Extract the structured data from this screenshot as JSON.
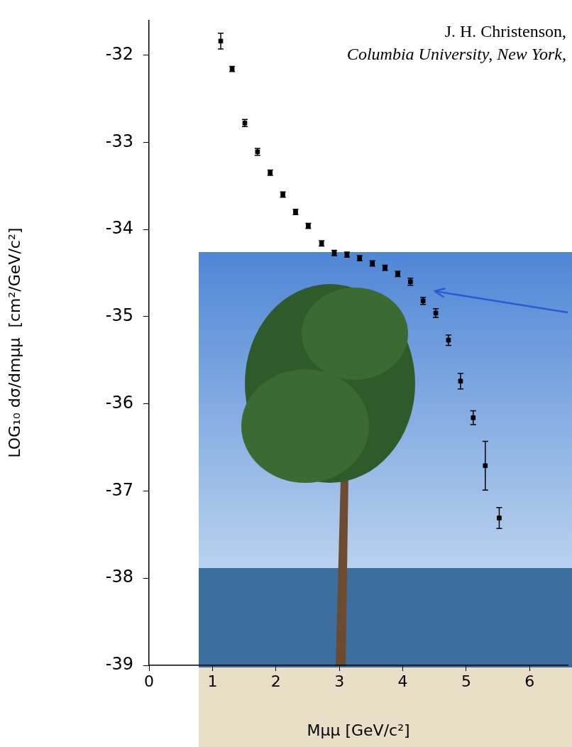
{
  "chart_data": {
    "type": "scatter",
    "annotations": [
      "J. H. Christenson,",
      "Columbia University, New York,"
    ],
    "x_label": "Mμμ [GeV/c²]",
    "y_label": "LOG₁₀ dσ/dmμμ  [cm²/GeV/c²]",
    "x": [
      1.13,
      1.31,
      1.51,
      1.71,
      1.91,
      2.11,
      2.31,
      2.51,
      2.72,
      2.92,
      3.12,
      3.32,
      3.52,
      3.72,
      3.92,
      4.12,
      4.32,
      4.52,
      4.72,
      4.91,
      5.11,
      5.3,
      5.52
    ],
    "values": [
      -31.84,
      -32.16,
      -32.78,
      -33.11,
      -33.35,
      -33.6,
      -33.8,
      -33.96,
      -34.16,
      -34.27,
      -34.29,
      -34.33,
      -34.39,
      -34.44,
      -34.51,
      -34.6,
      -34.82,
      -34.96,
      -35.27,
      -35.74,
      -36.16,
      -36.71,
      -37.31
    ],
    "errors": [
      0.09,
      0.03,
      0.04,
      0.04,
      0.03,
      0.03,
      0.03,
      0.03,
      0.03,
      0.03,
      0.03,
      0.03,
      0.03,
      0.03,
      0.03,
      0.04,
      0.04,
      0.05,
      0.06,
      0.09,
      0.08,
      0.28,
      0.12
    ],
    "color": "#000000",
    "marker": "square",
    "xlim": [
      0,
      6.6
    ],
    "ylim": [
      -39,
      -31.6
    ],
    "xticks": [
      0,
      1,
      2,
      3,
      4,
      5,
      6
    ],
    "yticks": [
      -39,
      -38,
      -37,
      -36,
      -35,
      -34,
      -33,
      -32
    ],
    "grid": false
  }
}
